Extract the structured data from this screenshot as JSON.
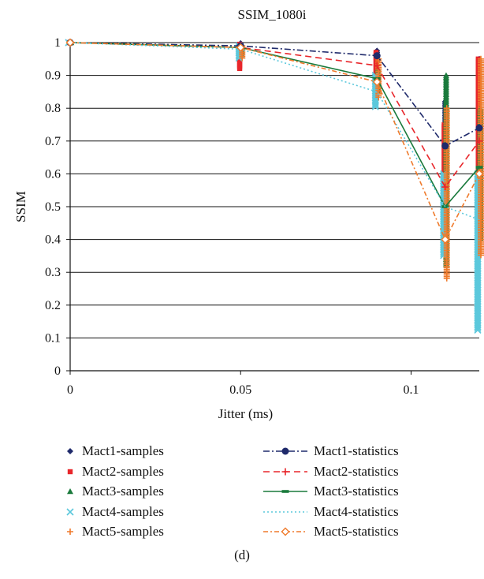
{
  "chart_data": {
    "type": "scatter",
    "title": "SSIM_1080i",
    "xlabel": "Jitter (ms)",
    "ylabel": "SSIM",
    "xlim": [
      0,
      0.12
    ],
    "ylim": [
      0,
      1
    ],
    "x_ticks": [
      "0",
      "0.05",
      "0.1"
    ],
    "y_ticks": [
      "0",
      "0.1",
      "0.2",
      "0.3",
      "0.4",
      "0.5",
      "0.6",
      "0.7",
      "0.8",
      "0.9",
      "1"
    ],
    "grid": "horizontal",
    "legend_position": "bottom",
    "sample_series": [
      {
        "name": "Mact1-samples",
        "color": "#1f2a6b",
        "marker": "diamond",
        "ranges": [
          [
            0,
            1.0,
            1.0
          ],
          [
            0.05,
            0.985,
            0.998
          ],
          [
            0.09,
            0.94,
            0.975
          ],
          [
            0.11,
            0.49,
            0.82
          ],
          [
            0.12,
            0.5,
            0.95
          ]
        ]
      },
      {
        "name": "Mact2-samples",
        "color": "#e8262b",
        "marker": "square",
        "ranges": [
          [
            0,
            1.0,
            1.0
          ],
          [
            0.05,
            0.92,
            0.995
          ],
          [
            0.09,
            0.9,
            0.97
          ],
          [
            0.11,
            0.45,
            0.75
          ],
          [
            0.12,
            0.45,
            0.95
          ]
        ]
      },
      {
        "name": "Mact3-samples",
        "color": "#1a7a3c",
        "marker": "triangle",
        "ranges": [
          [
            0,
            1.0,
            1.0
          ],
          [
            0.05,
            0.96,
            0.99
          ],
          [
            0.09,
            0.85,
            0.92
          ],
          [
            0.11,
            0.32,
            0.9
          ],
          [
            0.12,
            0.4,
            0.8
          ]
        ]
      },
      {
        "name": "Mact4-samples",
        "color": "#5bc8dc",
        "marker": "x",
        "ranges": [
          [
            0,
            1.0,
            1.0
          ],
          [
            0.05,
            0.95,
            0.99
          ],
          [
            0.09,
            0.8,
            0.9
          ],
          [
            0.11,
            0.35,
            0.6
          ],
          [
            0.12,
            0.12,
            0.6
          ]
        ]
      },
      {
        "name": "Mact5-samples",
        "color": "#ef7a2b",
        "marker": "plus",
        "ranges": [
          [
            0,
            1.0,
            1.0
          ],
          [
            0.05,
            0.95,
            0.99
          ],
          [
            0.09,
            0.83,
            0.95
          ],
          [
            0.11,
            0.28,
            0.8
          ],
          [
            0.12,
            0.35,
            0.95
          ]
        ]
      }
    ],
    "statistics_series": [
      {
        "name": "Mact1-statistics",
        "color": "#1f2a6b",
        "dash": "8,3,2,3",
        "marker": "circle",
        "x": [
          0,
          0.05,
          0.09,
          0.11,
          0.12
        ],
        "y": [
          1.0,
          0.99,
          0.96,
          0.685,
          0.74
        ]
      },
      {
        "name": "Mact2-statistics",
        "color": "#e8262b",
        "dash": "8,5",
        "marker": "plus",
        "x": [
          0,
          0.05,
          0.09,
          0.11,
          0.12
        ],
        "y": [
          1.0,
          0.985,
          0.93,
          0.56,
          0.7
        ]
      },
      {
        "name": "Mact3-statistics",
        "color": "#1a7a3c",
        "dash": "",
        "marker": "bar",
        "x": [
          0,
          0.05,
          0.09,
          0.11,
          0.12
        ],
        "y": [
          1.0,
          0.985,
          0.89,
          0.5,
          0.62
        ]
      },
      {
        "name": "Mact4-statistics",
        "color": "#5bc8dc",
        "dash": "2,3",
        "marker": "none",
        "x": [
          0,
          0.05,
          0.09,
          0.11,
          0.12
        ],
        "y": [
          1.0,
          0.98,
          0.85,
          0.5,
          0.46
        ]
      },
      {
        "name": "Mact5-statistics",
        "color": "#ef7a2b",
        "dash": "6,3,2,3",
        "marker": "diamond-open",
        "x": [
          0,
          0.05,
          0.09,
          0.11,
          0.12
        ],
        "y": [
          1.0,
          0.985,
          0.88,
          0.4,
          0.6
        ]
      }
    ]
  },
  "caption": "(d)"
}
